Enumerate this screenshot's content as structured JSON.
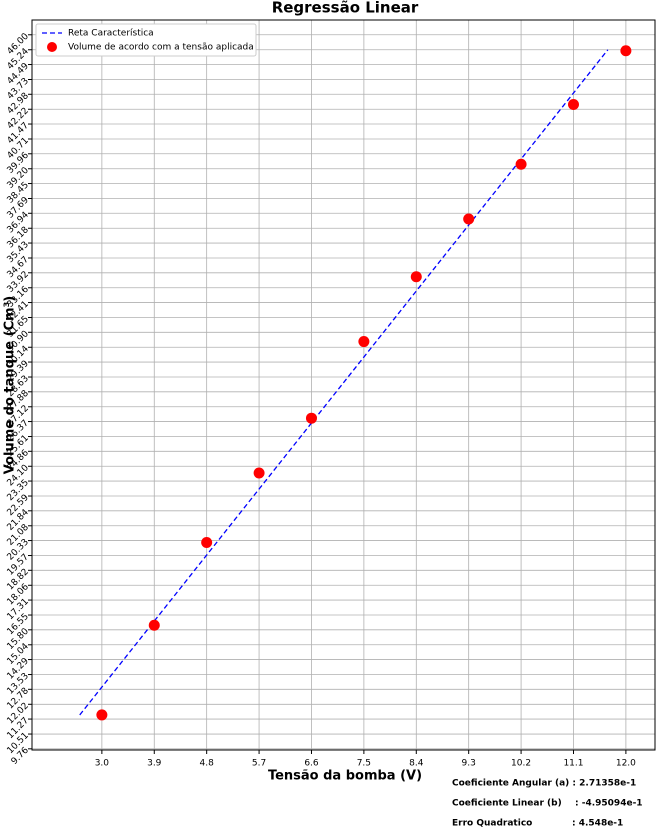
{
  "chart_data": {
    "type": "scatter",
    "title": "Regressão Linear",
    "xlabel": "Tensão da bomba  (V)",
    "ylabel": "Volume do tanque (Cm³)",
    "xlim": [
      1.8,
      12.5
    ],
    "ylim": [
      9.7,
      46.75
    ],
    "xticks": [
      {
        "value": 3.0,
        "label": "3.0"
      },
      3.9,
      4.8,
      5.7,
      6.6,
      7.5,
      8.4,
      9.3,
      10.2,
      11.1,
      {
        "value": 12.0,
        "label": "12.0"
      }
    ],
    "yticks": [
      9.76,
      10.51,
      11.27,
      12.02,
      12.78,
      13.53,
      14.29,
      15.04,
      {
        "value": 15.8,
        "label": "15.80"
      },
      16.55,
      17.31,
      18.06,
      18.82,
      19.57,
      20.33,
      21.08,
      21.84,
      22.59,
      23.35,
      {
        "value": 24.1,
        "label": "24.10"
      },
      24.86,
      25.61,
      26.37,
      27.12,
      27.88,
      28.63,
      29.39,
      30.14,
      {
        "value": 30.9,
        "label": "30.90"
      },
      31.65,
      32.41,
      33.16,
      33.92,
      34.67,
      35.43,
      36.18,
      36.94,
      37.69,
      38.45,
      {
        "value": 39.2,
        "label": "39.20"
      },
      39.96,
      40.71,
      41.47,
      42.22,
      42.98,
      43.73,
      44.49,
      45.24,
      {
        "value": 46.0,
        "label": "46.00"
      }
    ],
    "grid": true,
    "legend": "upper left",
    "series": [
      {
        "name": "Reta Característica",
        "type": "line",
        "color": "#0000ff",
        "x": [
          2.62,
          11.69
        ],
        "values": [
          11.48,
          45.24
        ]
      },
      {
        "name": "Volume de acordo com a tensão aplicada",
        "type": "scatter",
        "color": "#ff0000",
        "x": [
          3.0,
          3.9,
          4.8,
          5.7,
          6.6,
          7.5,
          8.4,
          9.3,
          10.2,
          11.1,
          12.0
        ],
        "values": [
          11.48,
          16.03,
          20.23,
          23.76,
          26.54,
          30.43,
          33.72,
          36.65,
          39.43,
          42.46,
          45.19
        ]
      }
    ],
    "annotations": [
      {
        "label": "Coeficiente Angular (a) : 2.71358e-1"
      },
      {
        "label": "Coeficiente Linear (b)",
        "text": ": -4.95094e-1"
      },
      {
        "label": "Erro Quadratico",
        "text": ": 4.548e-1"
      }
    ]
  }
}
